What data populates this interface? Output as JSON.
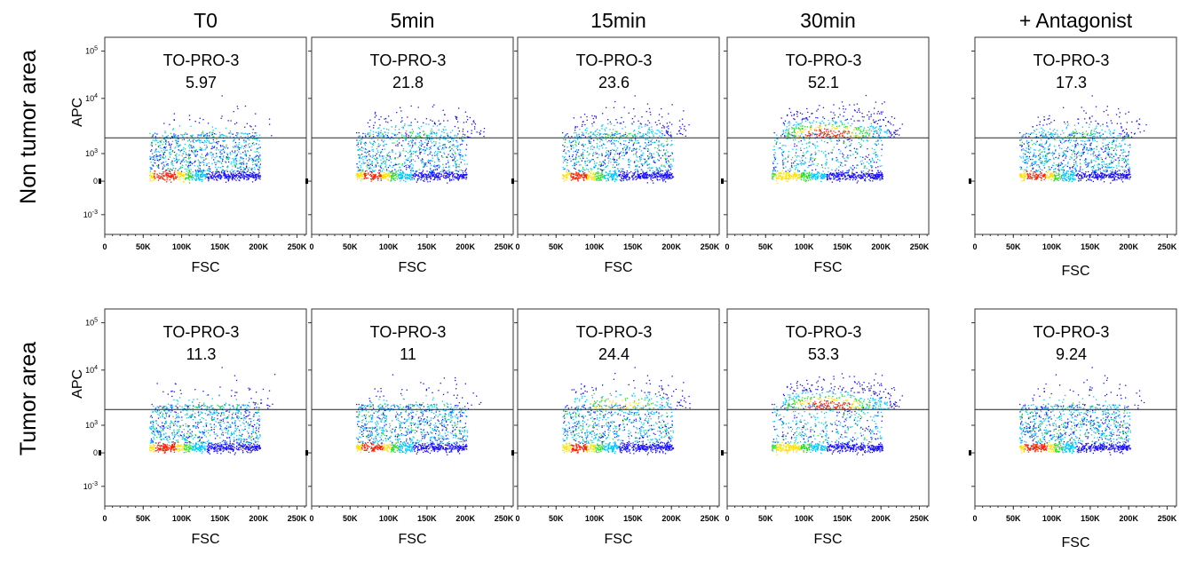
{
  "figure": {
    "columns": [
      "T0",
      "5min",
      "15min",
      "30min",
      "+ Antagonist"
    ],
    "rows": [
      "Non tumor area",
      "Tumor area"
    ],
    "x_axis_label": "FSC",
    "y_axis_label": "APC",
    "x_tick_labels": [
      "0",
      "50K",
      "100K",
      "150K",
      "200K",
      "250K"
    ],
    "y_tick_labels": [
      "10^-3",
      "0",
      "10^3",
      "10^4",
      "10^5"
    ],
    "gate_name": "TO-PRO-3"
  },
  "colors": {
    "frame": "#333333",
    "gate_line": "#222222",
    "density_low": "#1a10ff",
    "density_mid_low": "#00c8ff",
    "density_mid": "#22dd22",
    "density_mid_high": "#ffe000",
    "density_high": "#ff2000"
  },
  "chart_data": {
    "type": "scatter",
    "plot_kind": "flow cytometry density dot plot",
    "x_scale": "linear",
    "y_scale": "biexponential",
    "xlim": [
      0,
      262144
    ],
    "gate": "APC above threshold (horizontal gate line)",
    "panels": [
      {
        "row": "Non tumor area",
        "column": "T0",
        "gate": "TO-PRO-3",
        "percent_positive": 5.97
      },
      {
        "row": "Non tumor area",
        "column": "5min",
        "gate": "TO-PRO-3",
        "percent_positive": 21.8
      },
      {
        "row": "Non tumor area",
        "column": "15min",
        "gate": "TO-PRO-3",
        "percent_positive": 23.6
      },
      {
        "row": "Non tumor area",
        "column": "30min",
        "gate": "TO-PRO-3",
        "percent_positive": 52.1
      },
      {
        "row": "Non tumor area",
        "column": "+ Antagonist",
        "gate": "TO-PRO-3",
        "percent_positive": 17.3
      },
      {
        "row": "Tumor area",
        "column": "T0",
        "gate": "TO-PRO-3",
        "percent_positive": 11.3
      },
      {
        "row": "Tumor area",
        "column": "5min",
        "gate": "TO-PRO-3",
        "percent_positive": 11
      },
      {
        "row": "Tumor area",
        "column": "15min",
        "gate": "TO-PRO-3",
        "percent_positive": 24.4
      },
      {
        "row": "Tumor area",
        "column": "30min",
        "gate": "TO-PRO-3",
        "percent_positive": 53.3
      },
      {
        "row": "Tumor area",
        "column": "+ Antagonist",
        "gate": "TO-PRO-3",
        "percent_positive": 9.24
      }
    ]
  }
}
